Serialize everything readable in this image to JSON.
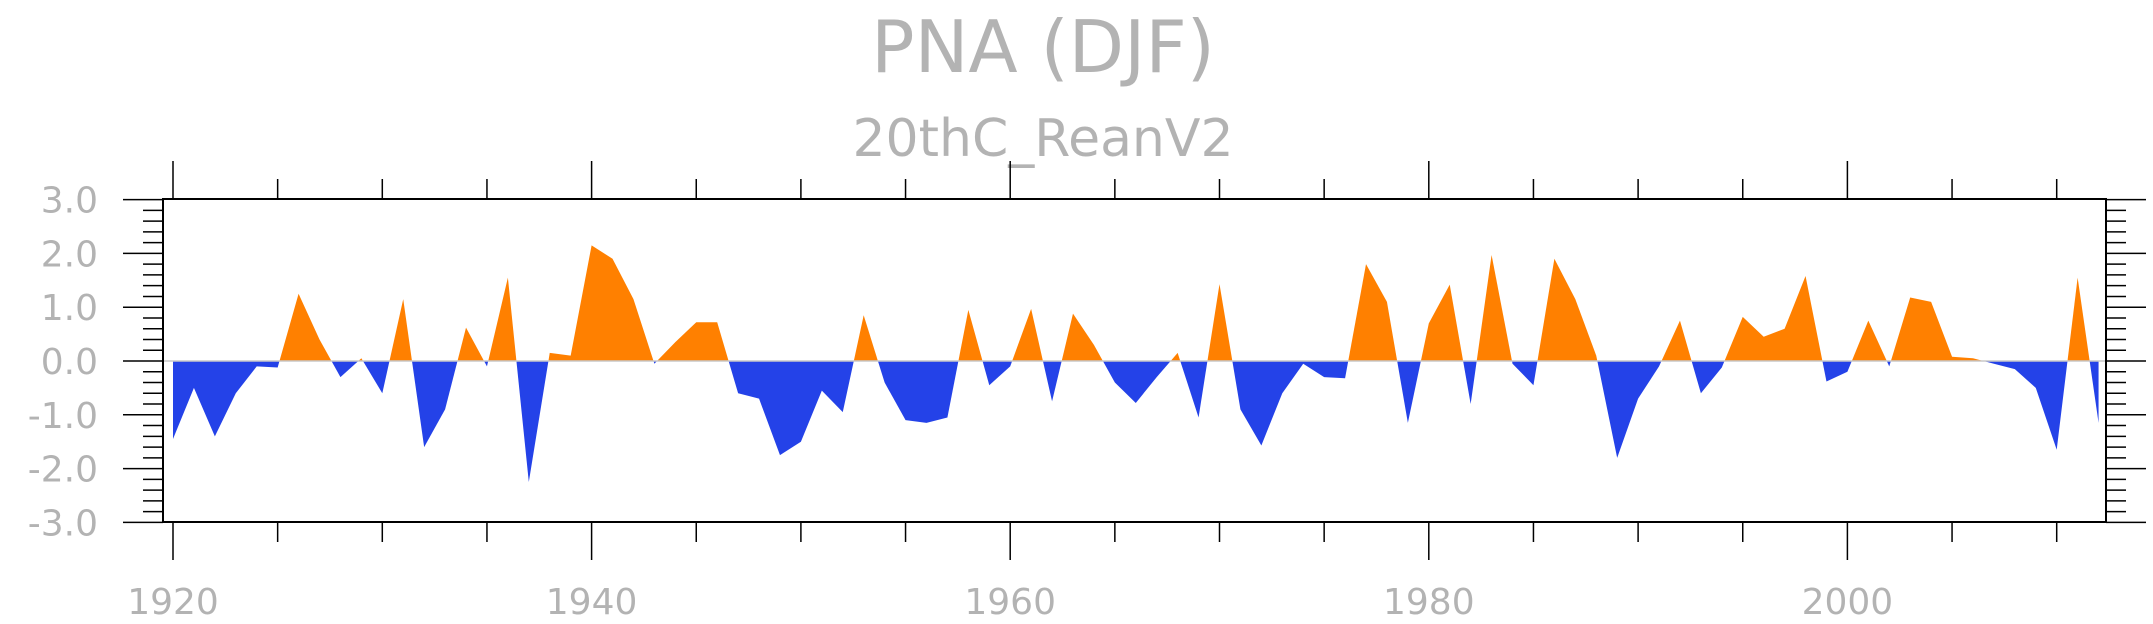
{
  "chart_data": {
    "type": "area",
    "title": "PNA (DJF)",
    "subtitle": "20thC_ReanV2",
    "xlabel": "",
    "ylabel": "",
    "xlim": [
      1920,
      2012
    ],
    "ylim": [
      -3.0,
      3.0
    ],
    "xticks": [
      1920,
      1940,
      1960,
      1980,
      2000
    ],
    "xtick_labels": [
      "1920",
      "1940",
      "1960",
      "1980",
      "2000"
    ],
    "yticks": [
      -3.0,
      -2.0,
      -1.0,
      0.0,
      1.0,
      2.0,
      3.0
    ],
    "ytick_labels": [
      "-3.0",
      "-2.0",
      "-1.0",
      "0.0",
      "1.0",
      "2.0",
      "3.0"
    ],
    "grid": false,
    "positive_color": "#ff8000",
    "negative_color": "#2442e8",
    "x": [
      1920,
      1921,
      1922,
      1923,
      1924,
      1925,
      1926,
      1927,
      1928,
      1929,
      1930,
      1931,
      1932,
      1933,
      1934,
      1935,
      1936,
      1937,
      1938,
      1939,
      1940,
      1941,
      1942,
      1943,
      1944,
      1945,
      1946,
      1947,
      1948,
      1949,
      1950,
      1951,
      1952,
      1953,
      1954,
      1955,
      1956,
      1957,
      1958,
      1959,
      1960,
      1961,
      1962,
      1963,
      1964,
      1965,
      1966,
      1967,
      1968,
      1969,
      1970,
      1971,
      1972,
      1973,
      1974,
      1975,
      1976,
      1977,
      1978,
      1979,
      1980,
      1981,
      1982,
      1983,
      1984,
      1985,
      1986,
      1987,
      1988,
      1989,
      1990,
      1991,
      1992,
      1993,
      1994,
      1995,
      1996,
      1997,
      1998,
      1999,
      2000,
      2001,
      2002,
      2003,
      2004,
      2005,
      2006,
      2007,
      2008,
      2009,
      2010,
      2011,
      2012
    ],
    "values": [
      -1.45,
      -0.5,
      -1.4,
      -0.6,
      -0.1,
      -0.12,
      1.25,
      0.4,
      -0.3,
      0.05,
      -0.6,
      1.15,
      -1.6,
      -0.9,
      0.62,
      -0.1,
      1.55,
      -2.25,
      0.15,
      0.1,
      2.15,
      1.9,
      1.15,
      -0.05,
      0.35,
      0.72,
      0.72,
      -0.6,
      -0.7,
      -1.75,
      -1.5,
      -0.55,
      -0.95,
      0.85,
      -0.4,
      -1.1,
      -1.15,
      -1.05,
      0.95,
      -0.45,
      -0.1,
      0.97,
      -0.75,
      0.88,
      0.3,
      -0.4,
      -0.78,
      -0.3,
      0.15,
      -1.05,
      1.43,
      -0.9,
      -1.57,
      -0.6,
      -0.05,
      -0.3,
      -0.32,
      1.8,
      1.1,
      -1.15,
      0.7,
      1.42,
      -0.8,
      1.97,
      -0.05,
      -0.45,
      1.9,
      1.15,
      0.1,
      -1.8,
      -0.7,
      -0.1,
      0.75,
      -0.6,
      -0.12,
      0.82,
      0.45,
      0.6,
      1.58,
      -0.38,
      -0.2,
      0.75,
      -0.1,
      1.18,
      1.1,
      0.08,
      0.05,
      -0.05,
      -0.15,
      -0.5,
      -1.65,
      1.55,
      -1.15
    ]
  }
}
